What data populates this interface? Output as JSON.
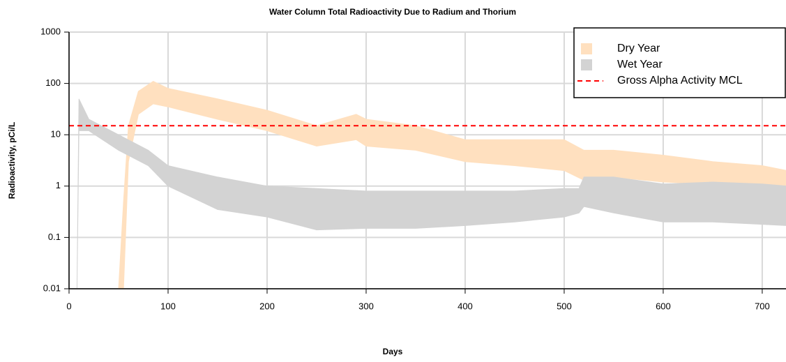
{
  "chart_data": {
    "type": "band",
    "title": "Water Column Total Radioactivity Due to Radium and Thorium",
    "xlabel": "Days",
    "ylabel": "Radioactivity, pCi/L",
    "log_y": true,
    "grid": true,
    "legend": "top-right",
    "xlim": [
      0,
      724
    ],
    "xticks": [
      0,
      100,
      200,
      300,
      400,
      500,
      600,
      700
    ],
    "ylim": [
      0.01,
      1000
    ],
    "yticks": [
      0.01,
      0.1,
      1,
      10,
      100,
      1000
    ],
    "series": [
      {
        "name": "Dry Year",
        "color": "#ffe0bf",
        "x": [
          50,
          55,
          60,
          70,
          85,
          100,
          150,
          200,
          250,
          290,
          300,
          350,
          400,
          450,
          500,
          520,
          550,
          600,
          650,
          700,
          725
        ],
        "values": [
          0.01,
          0.5,
          15,
          70,
          110,
          80,
          50,
          30,
          15,
          25,
          20,
          15,
          8,
          8,
          8,
          5,
          5,
          4,
          3,
          2.5,
          2
        ],
        "lower": [
          0.01,
          0.01,
          3,
          25,
          40,
          35,
          20,
          12,
          6,
          8,
          6,
          5,
          3,
          2.5,
          2,
          1.3,
          1.5,
          1.2,
          1.1,
          1,
          1
        ]
      },
      {
        "name": "Wet Year",
        "color": "#d3d3d3",
        "x": [
          8,
          10,
          20,
          50,
          80,
          100,
          150,
          200,
          250,
          300,
          350,
          400,
          450,
          500,
          515,
          520,
          550,
          600,
          650,
          700,
          725
        ],
        "values": [
          0.01,
          50,
          20,
          10,
          5,
          2.5,
          1.5,
          1,
          0.9,
          0.8,
          0.8,
          0.8,
          0.8,
          0.9,
          0.9,
          1.5,
          1.5,
          1.1,
          1.2,
          1.1,
          1
        ],
        "lower": [
          0.01,
          12,
          12,
          5,
          2.5,
          1,
          0.35,
          0.25,
          0.14,
          0.15,
          0.15,
          0.17,
          0.2,
          0.25,
          0.3,
          0.4,
          0.3,
          0.2,
          0.2,
          0.18,
          0.17
        ]
      }
    ],
    "hline": {
      "name": "Gross Alpha Activity MCL",
      "value": 15,
      "color": "#ff0000"
    }
  }
}
